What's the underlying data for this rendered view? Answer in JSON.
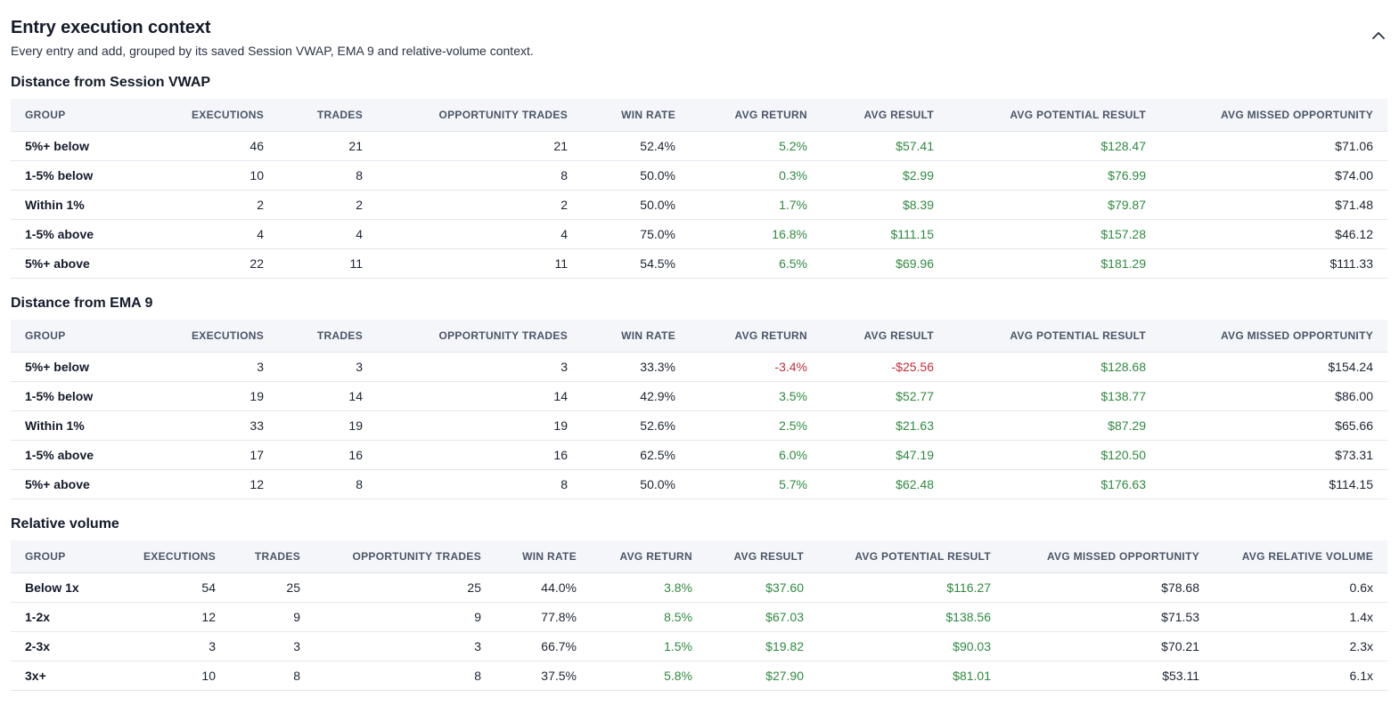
{
  "header": {
    "title": "Entry execution context",
    "subtitle": "Every entry and add, grouped by its saved Session VWAP, EMA 9 and relative-volume context.",
    "collapse_icon": "chevron-up-icon"
  },
  "colors": {
    "positive": "#2f8a3f",
    "negative": "#c0303a",
    "header_bg": "#f4f6fa"
  },
  "vwap": {
    "title": "Distance from Session VWAP",
    "columns": [
      "GROUP",
      "EXECUTIONS",
      "TRADES",
      "OPPORTUNITY TRADES",
      "WIN RATE",
      "AVG RETURN",
      "AVG RESULT",
      "AVG POTENTIAL RESULT",
      "AVG MISSED OPPORTUNITY"
    ],
    "rows": [
      [
        "5%+ below",
        "46",
        "21",
        "21",
        "52.4%",
        "5.2%",
        "$57.41",
        "$128.47",
        "$71.06"
      ],
      [
        "1-5% below",
        "10",
        "8",
        "8",
        "50.0%",
        "0.3%",
        "$2.99",
        "$76.99",
        "$74.00"
      ],
      [
        "Within 1%",
        "2",
        "2",
        "2",
        "50.0%",
        "1.7%",
        "$8.39",
        "$79.87",
        "$71.48"
      ],
      [
        "1-5% above",
        "4",
        "4",
        "4",
        "75.0%",
        "16.8%",
        "$111.15",
        "$157.28",
        "$46.12"
      ],
      [
        "5%+ above",
        "22",
        "11",
        "11",
        "54.5%",
        "6.5%",
        "$69.96",
        "$181.29",
        "$111.33"
      ]
    ]
  },
  "ema": {
    "title": "Distance from EMA 9",
    "columns": [
      "GROUP",
      "EXECUTIONS",
      "TRADES",
      "OPPORTUNITY TRADES",
      "WIN RATE",
      "AVG RETURN",
      "AVG RESULT",
      "AVG POTENTIAL RESULT",
      "AVG MISSED OPPORTUNITY"
    ],
    "rows": [
      [
        "5%+ below",
        "3",
        "3",
        "3",
        "33.3%",
        "-3.4%",
        "-$25.56",
        "$128.68",
        "$154.24"
      ],
      [
        "1-5% below",
        "19",
        "14",
        "14",
        "42.9%",
        "3.5%",
        "$52.77",
        "$138.77",
        "$86.00"
      ],
      [
        "Within 1%",
        "33",
        "19",
        "19",
        "52.6%",
        "2.5%",
        "$21.63",
        "$87.29",
        "$65.66"
      ],
      [
        "1-5% above",
        "17",
        "16",
        "16",
        "62.5%",
        "6.0%",
        "$47.19",
        "$120.50",
        "$73.31"
      ],
      [
        "5%+ above",
        "12",
        "8",
        "8",
        "50.0%",
        "5.7%",
        "$62.48",
        "$176.63",
        "$114.15"
      ]
    ]
  },
  "relvol": {
    "title": "Relative volume",
    "columns": [
      "GROUP",
      "EXECUTIONS",
      "TRADES",
      "OPPORTUNITY TRADES",
      "WIN RATE",
      "AVG RETURN",
      "AVG RESULT",
      "AVG POTENTIAL RESULT",
      "AVG MISSED OPPORTUNITY",
      "AVG RELATIVE VOLUME"
    ],
    "rows": [
      [
        "Below 1x",
        "54",
        "25",
        "25",
        "44.0%",
        "3.8%",
        "$37.60",
        "$116.27",
        "$78.68",
        "0.6x"
      ],
      [
        "1-2x",
        "12",
        "9",
        "9",
        "77.8%",
        "8.5%",
        "$67.03",
        "$138.56",
        "$71.53",
        "1.4x"
      ],
      [
        "2-3x",
        "3",
        "3",
        "3",
        "66.7%",
        "1.5%",
        "$19.82",
        "$90.03",
        "$70.21",
        "2.3x"
      ],
      [
        "3x+",
        "10",
        "8",
        "8",
        "37.5%",
        "5.8%",
        "$27.90",
        "$81.01",
        "$53.11",
        "6.1x"
      ]
    ]
  }
}
